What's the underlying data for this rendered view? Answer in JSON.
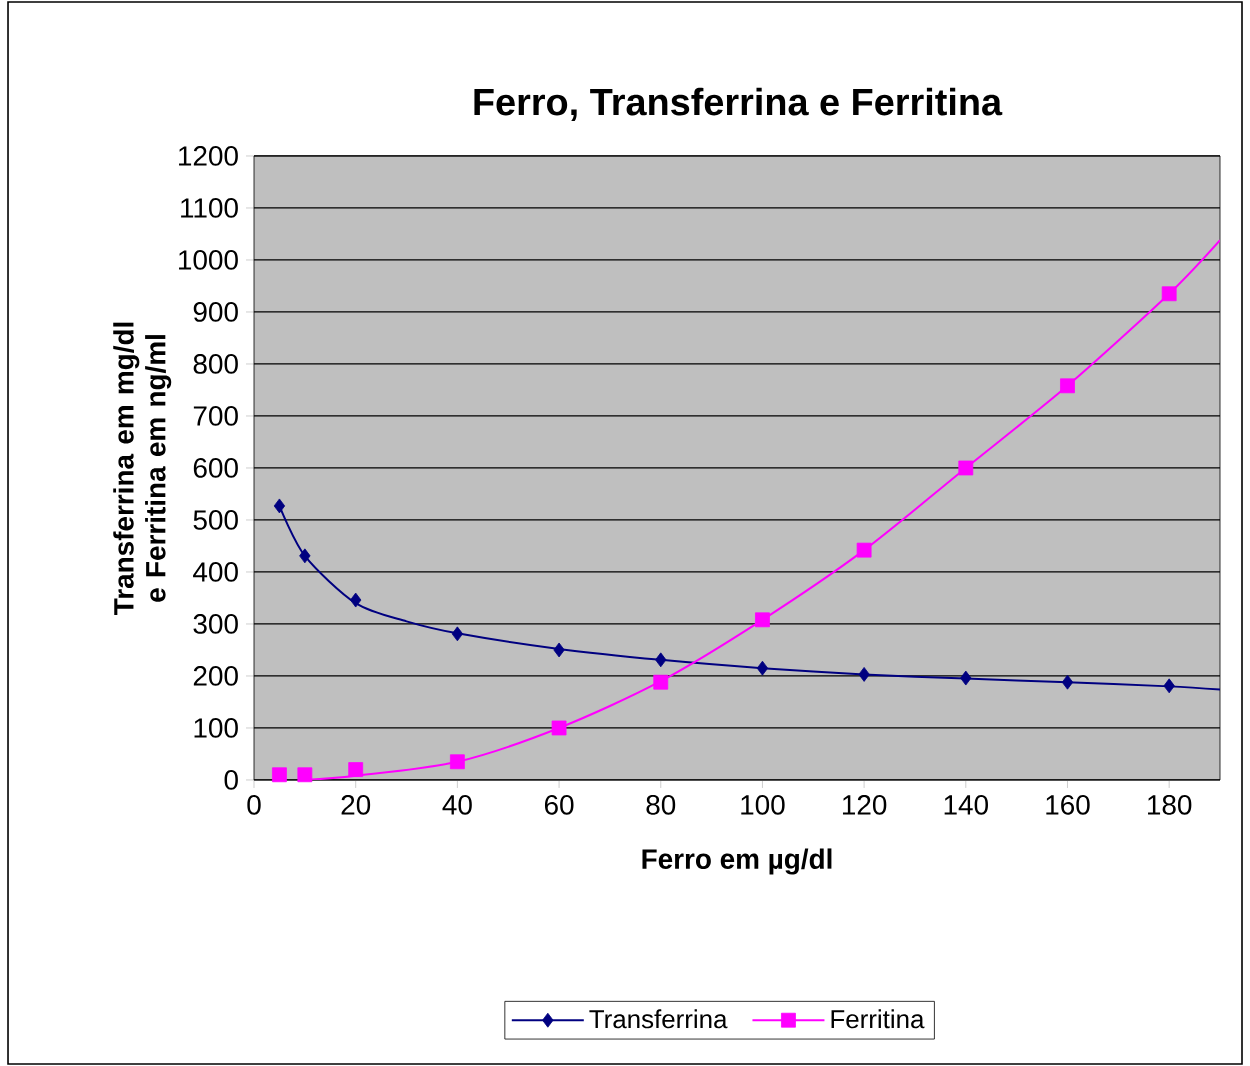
{
  "chart_data": {
    "type": "line",
    "title": "Ferro, Transferrina e Ferritina",
    "xlabel": "Ferro em µg/dl",
    "ylabel": "Transferrina em mg/dl e Ferritina em ng/ml",
    "xlim": [
      0,
      190
    ],
    "xticks": [
      0,
      20,
      40,
      60,
      80,
      100,
      120,
      140,
      160,
      180
    ],
    "ylim": [
      0,
      1200
    ],
    "yticks": [
      0,
      100,
      200,
      300,
      400,
      500,
      600,
      700,
      800,
      900,
      1000,
      1100,
      1200
    ],
    "grid": "y",
    "legend": "bottom",
    "line_style": "solid",
    "series": [
      {
        "name": "Transferrina",
        "type": "scatter",
        "color": "#000080",
        "marker": "diamond",
        "x": [
          5,
          10,
          20,
          40,
          60,
          80,
          100,
          120,
          140,
          160,
          180
        ],
        "values": [
          527,
          431,
          346,
          281,
          250,
          231,
          215,
          203,
          196,
          188,
          181
        ]
      },
      {
        "color": "#000080",
        "marker": "none",
        "x": [
          5,
          10,
          20,
          30,
          40,
          60,
          80,
          100,
          120,
          140,
          160,
          180,
          190
        ],
        "values": [
          527,
          431,
          340,
          305,
          282,
          252,
          231,
          215,
          203,
          195,
          188,
          180,
          174
        ]
      },
      {
        "name": "Ferritina",
        "type": "scatter",
        "color": "#ff00ff",
        "marker": "square",
        "x": [
          5,
          10,
          20,
          40,
          60,
          80,
          100,
          120,
          140,
          160,
          180
        ],
        "values": [
          10,
          10,
          20,
          35,
          100,
          188,
          308,
          442,
          600,
          758,
          935
        ]
      },
      {
        "color": "#ff00ff",
        "marker": "none",
        "x": [
          10,
          20,
          40,
          60,
          80,
          100,
          120,
          140,
          160,
          180,
          190
        ],
        "values": [
          0,
          8,
          35,
          100,
          190,
          308,
          442,
          600,
          758,
          935,
          1038
        ]
      }
    ]
  }
}
